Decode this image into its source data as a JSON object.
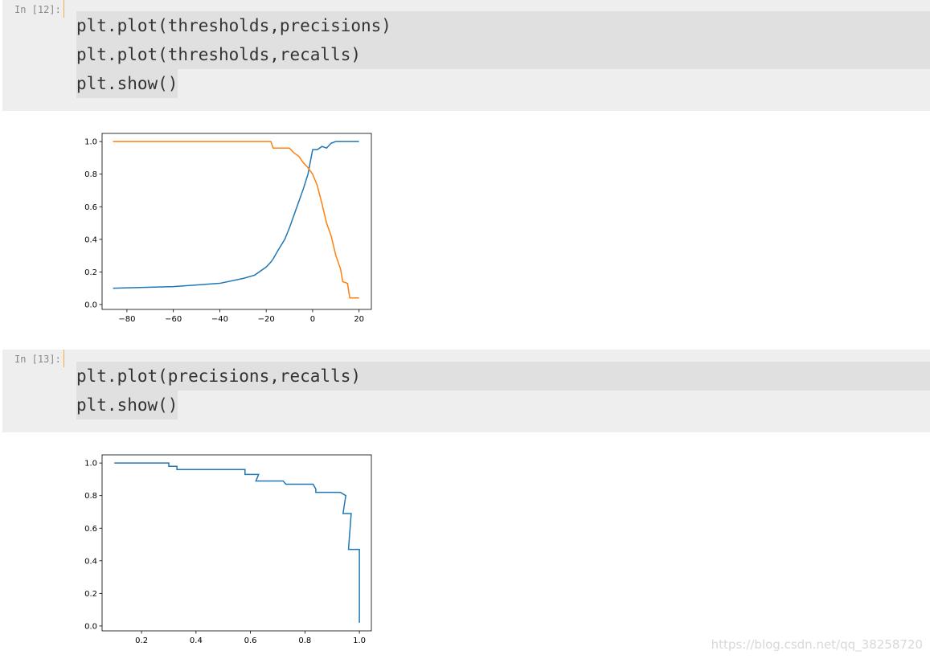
{
  "cells": [
    {
      "prompt": "In [12]:",
      "code": [
        "plt.plot(thresholds,precisions)",
        "plt.plot(thresholds,recalls)",
        "plt.show()"
      ]
    },
    {
      "prompt": "In [13]:",
      "code": [
        "plt.plot(precisions,recalls)",
        "plt.show()"
      ]
    }
  ],
  "chart_data": [
    {
      "type": "line",
      "x": [
        -86,
        -60,
        -40,
        -30,
        -25,
        -20,
        -18,
        -17,
        -15,
        -12,
        -10,
        -8,
        -6,
        -4,
        -2,
        0,
        2,
        4,
        6,
        8,
        10,
        12,
        13,
        15,
        16,
        20
      ],
      "series": [
        {
          "color": "#1f77b4",
          "values": [
            0.1,
            0.11,
            0.13,
            0.16,
            0.18,
            0.23,
            0.26,
            0.28,
            0.33,
            0.4,
            0.47,
            0.55,
            0.63,
            0.71,
            0.8,
            0.95,
            0.95,
            0.97,
            0.96,
            0.99,
            1.0,
            1.0,
            1.0,
            1.0,
            1.0,
            1.0
          ]
        },
        {
          "color": "#ff7f0e",
          "values": [
            1.0,
            1.0,
            1.0,
            1.0,
            1.0,
            1.0,
            1.0,
            0.96,
            0.96,
            0.96,
            0.96,
            0.93,
            0.91,
            0.87,
            0.84,
            0.8,
            0.73,
            0.62,
            0.5,
            0.42,
            0.3,
            0.22,
            0.14,
            0.13,
            0.04,
            0.04
          ]
        }
      ],
      "xlim": [
        -90.7,
        25.3
      ],
      "ylim": [
        -0.03,
        1.05
      ],
      "xticks": [
        {
          "value": -80,
          "label": "−80"
        },
        {
          "value": -60,
          "label": "−60"
        },
        {
          "value": -40,
          "label": "−40"
        },
        {
          "value": -20,
          "label": "−20"
        },
        0,
        20
      ],
      "yticks": [
        {
          "value": 0,
          "label": "0.0"
        },
        0.2,
        0.4,
        0.6,
        0.8,
        {
          "value": 1,
          "label": "1.0"
        }
      ],
      "grid": false
    },
    {
      "type": "line",
      "x": [
        0.1,
        0.3,
        0.3,
        0.33,
        0.33,
        0.58,
        0.58,
        0.63,
        0.62,
        0.72,
        0.73,
        0.83,
        0.84,
        0.84,
        0.93,
        0.95,
        0.94,
        0.97,
        0.96,
        1.0,
        1.0
      ],
      "series": [
        {
          "color": "#1f77b4",
          "values": [
            1.0,
            1.0,
            0.98,
            0.98,
            0.96,
            0.96,
            0.93,
            0.93,
            0.89,
            0.89,
            0.87,
            0.87,
            0.84,
            0.82,
            0.82,
            0.8,
            0.69,
            0.69,
            0.47,
            0.47,
            0.02
          ]
        }
      ],
      "xlim": [
        0.055,
        1.044
      ],
      "ylim": [
        -0.03,
        1.05
      ],
      "xticks": [
        0.2,
        0.4,
        0.6,
        0.8,
        {
          "value": 1,
          "label": "1.0"
        }
      ],
      "yticks": [
        {
          "value": 0,
          "label": "0.0"
        },
        0.2,
        0.4,
        0.6,
        0.8,
        {
          "value": 1,
          "label": "1.0"
        }
      ],
      "grid": false
    }
  ],
  "watermark": "https://blog.csdn.net/qq_38258720"
}
